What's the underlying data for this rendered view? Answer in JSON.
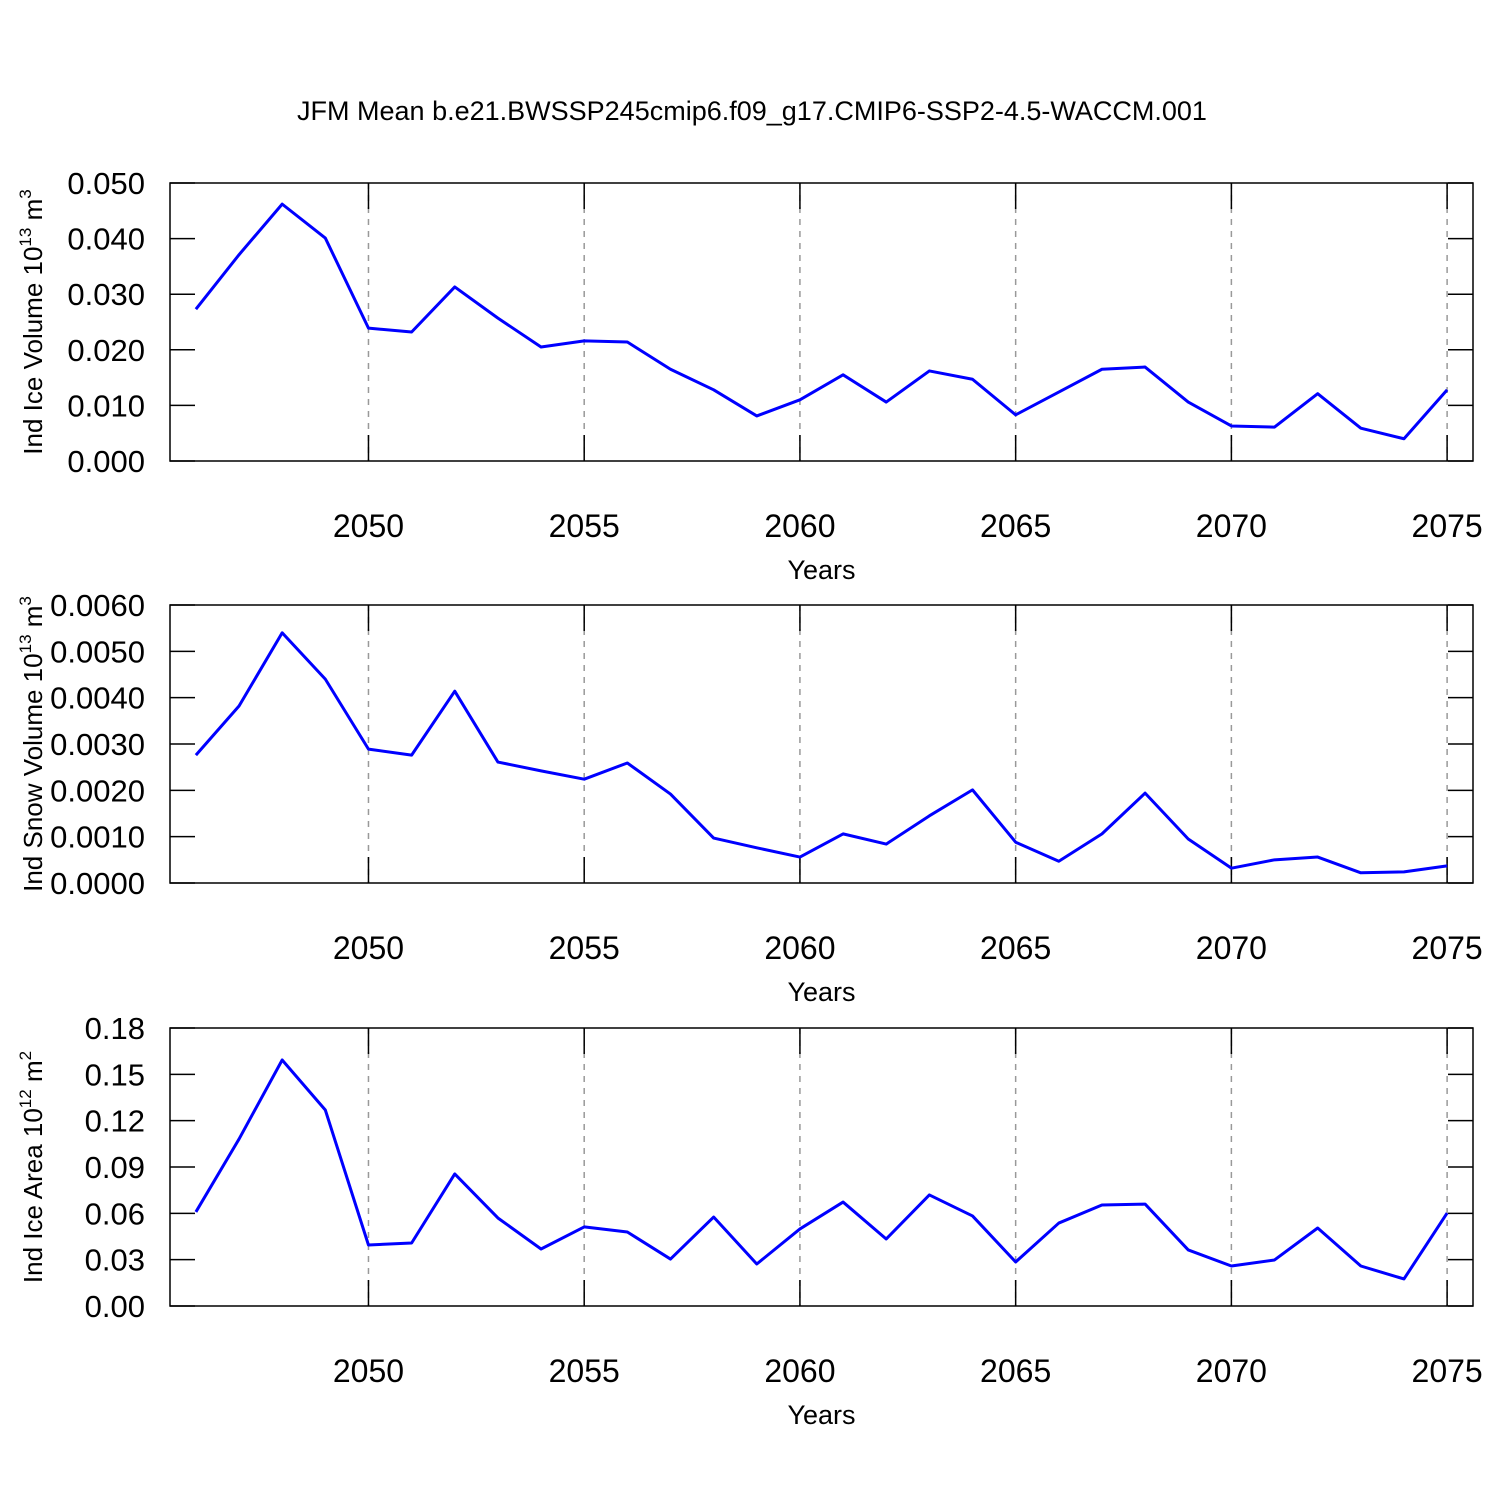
{
  "title": "JFM Mean b.e21.BWSSP245cmip6.f09_g17.CMIP6-SSP2-4.5-WACCM.001",
  "chart_data": [
    {
      "type": "line",
      "ylabel": [
        "Ind Ice Volume 10",
        "13",
        " m",
        "3"
      ],
      "xlabel": "Years",
      "x": [
        2046,
        2047,
        2048,
        2049,
        2050,
        2051,
        2052,
        2053,
        2054,
        2055,
        2056,
        2057,
        2058,
        2059,
        2060,
        2061,
        2062,
        2063,
        2064,
        2065,
        2066,
        2067,
        2068,
        2069,
        2070,
        2071,
        2072,
        2073,
        2074,
        2075
      ],
      "values": [
        0.0273,
        0.0371,
        0.0462,
        0.0401,
        0.0239,
        0.0232,
        0.0313,
        0.0257,
        0.0205,
        0.0216,
        0.0214,
        0.0165,
        0.0128,
        0.0081,
        0.011,
        0.0155,
        0.0106,
        0.0162,
        0.0147,
        0.0083,
        0.0124,
        0.0165,
        0.0169,
        0.0106,
        0.0063,
        0.0061,
        0.0121,
        0.0059,
        0.004,
        0.0128
      ],
      "color": "#0000ff",
      "xlim": [
        2045.4,
        2075.6
      ],
      "xticks": [
        2050,
        2055,
        2060,
        2065,
        2070,
        2075
      ],
      "ylim": [
        0,
        0.05
      ],
      "yticks": [
        {
          "value": 0,
          "label": "0.000"
        },
        {
          "value": 0.01,
          "label": "0.010"
        },
        {
          "value": 0.02,
          "label": "0.020"
        },
        {
          "value": 0.03,
          "label": "0.030"
        },
        {
          "value": 0.04,
          "label": "0.040"
        },
        {
          "value": 0.05,
          "label": "0.050"
        }
      ],
      "grid": true
    },
    {
      "type": "line",
      "ylabel": [
        "Ind Snow Volume 10",
        "13",
        " m",
        "3"
      ],
      "xlabel": "Years",
      "x": [
        2046,
        2047,
        2048,
        2049,
        2050,
        2051,
        2052,
        2053,
        2054,
        2055,
        2056,
        2057,
        2058,
        2059,
        2060,
        2061,
        2062,
        2063,
        2064,
        2065,
        2066,
        2067,
        2068,
        2069,
        2070,
        2071,
        2072,
        2073,
        2074,
        2075
      ],
      "values": [
        0.00276,
        0.00382,
        0.0054,
        0.0044,
        0.00289,
        0.00276,
        0.00414,
        0.00261,
        0.00242,
        0.00224,
        0.00259,
        0.00192,
        0.00097,
        0.00076,
        0.00056,
        0.00106,
        0.00084,
        0.00145,
        0.00201,
        0.00088,
        0.00047,
        0.00106,
        0.00194,
        0.00095,
        0.00032,
        0.0005,
        0.00056,
        0.00022,
        0.00024,
        0.00037
      ],
      "color": "#0000ff",
      "xlim": [
        2045.4,
        2075.6
      ],
      "xticks": [
        2050,
        2055,
        2060,
        2065,
        2070,
        2075
      ],
      "ylim": [
        0,
        0.006
      ],
      "yticks": [
        {
          "value": 0,
          "label": "0.0000"
        },
        {
          "value": 0.001,
          "label": "0.0010"
        },
        {
          "value": 0.002,
          "label": "0.0020"
        },
        {
          "value": 0.003,
          "label": "0.0030"
        },
        {
          "value": 0.004,
          "label": "0.0040"
        },
        {
          "value": 0.005,
          "label": "0.0050"
        },
        {
          "value": 0.006,
          "label": "0.0060"
        }
      ],
      "grid": true
    },
    {
      "type": "line",
      "ylabel": [
        "Ind Ice Area 10",
        "12",
        " m",
        "2"
      ],
      "xlabel": "Years",
      "x": [
        2046,
        2047,
        2048,
        2049,
        2050,
        2051,
        2052,
        2053,
        2054,
        2055,
        2056,
        2057,
        2058,
        2059,
        2060,
        2061,
        2062,
        2063,
        2064,
        2065,
        2066,
        2067,
        2068,
        2069,
        2070,
        2071,
        2072,
        2073,
        2074,
        2075
      ],
      "values": [
        0.0609,
        0.1081,
        0.1593,
        0.1269,
        0.0395,
        0.0408,
        0.0855,
        0.057,
        0.0369,
        0.0512,
        0.0479,
        0.0304,
        0.0576,
        0.0272,
        0.0499,
        0.0673,
        0.0434,
        0.0719,
        0.0583,
        0.0285,
        0.0537,
        0.0654,
        0.066,
        0.0363,
        0.0259,
        0.0298,
        0.0505,
        0.0259,
        0.0175,
        0.0602
      ],
      "color": "#0000ff",
      "xlim": [
        2045.4,
        2075.6
      ],
      "xticks": [
        2050,
        2055,
        2060,
        2065,
        2070,
        2075
      ],
      "ylim": [
        0,
        0.18
      ],
      "yticks": [
        {
          "value": 0,
          "label": "0.00"
        },
        {
          "value": 0.03,
          "label": "0.03"
        },
        {
          "value": 0.06,
          "label": "0.06"
        },
        {
          "value": 0.09,
          "label": "0.09"
        },
        {
          "value": 0.12,
          "label": "0.12"
        },
        {
          "value": 0.15,
          "label": "0.15"
        },
        {
          "value": 0.18,
          "label": "0.18"
        }
      ],
      "grid": true
    }
  ]
}
